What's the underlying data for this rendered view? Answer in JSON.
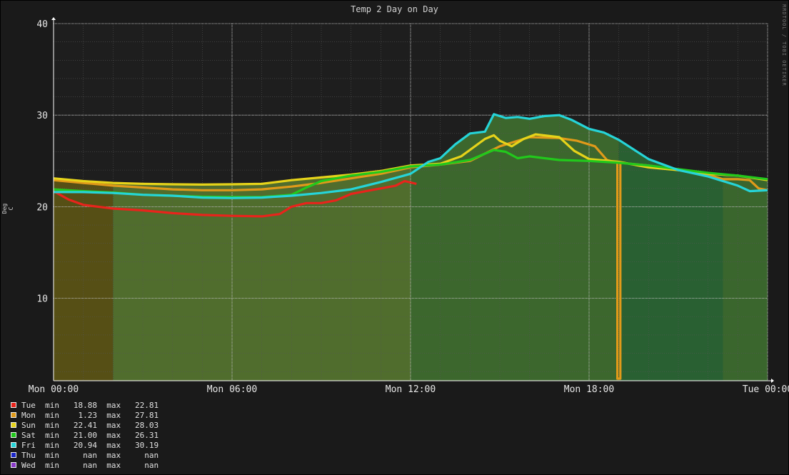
{
  "chart_data": {
    "type": "area",
    "title": "Temp 2 Day on Day",
    "ylabel": "Deg C",
    "watermark": "RRDTOOL / TOBI OETIKER",
    "xlim": [
      0,
      24
    ],
    "ylim": [
      1,
      40
    ],
    "y_ticks": [
      10,
      20,
      30,
      40
    ],
    "x_ticks": [
      {
        "h": 0,
        "label": "Mon 00:00"
      },
      {
        "h": 6,
        "label": "Mon 06:00"
      },
      {
        "h": 12,
        "label": "Mon 12:00"
      },
      {
        "h": 18,
        "label": "Mon 18:00"
      },
      {
        "h": 24,
        "label": "Tue 00:00"
      }
    ],
    "grid": true,
    "legend_position": "bottom-left",
    "series": [
      {
        "name": "Tue",
        "color": "#e8241c",
        "min": "18.88",
        "max": "22.81",
        "points": [
          [
            0,
            21.7
          ],
          [
            0.5,
            20.8
          ],
          [
            1,
            20.2
          ],
          [
            2,
            19.8
          ],
          [
            3,
            19.6
          ],
          [
            4,
            19.3
          ],
          [
            5,
            19.1
          ],
          [
            6,
            19.0
          ],
          [
            7,
            18.95
          ],
          [
            7.6,
            19.2
          ],
          [
            8,
            20.0
          ],
          [
            8.5,
            20.4
          ],
          [
            9,
            20.4
          ],
          [
            9.5,
            20.7
          ],
          [
            10,
            21.4
          ],
          [
            10.5,
            21.7
          ],
          [
            11,
            22.0
          ],
          [
            11.5,
            22.3
          ],
          [
            11.8,
            22.8
          ],
          [
            12.2,
            22.5
          ]
        ]
      },
      {
        "name": "Mon",
        "color": "#e09a1a",
        "min": "1.23",
        "max": "27.81",
        "points": [
          [
            0,
            22.9
          ],
          [
            1,
            22.6
          ],
          [
            2,
            22.3
          ],
          [
            3,
            22.1
          ],
          [
            4,
            21.9
          ],
          [
            5,
            21.8
          ],
          [
            6,
            21.8
          ],
          [
            7,
            21.9
          ],
          [
            8,
            22.2
          ],
          [
            9,
            22.6
          ],
          [
            10,
            23.1
          ],
          [
            11,
            23.6
          ],
          [
            12,
            24.3
          ],
          [
            13,
            24.6
          ],
          [
            14,
            25.0
          ],
          [
            15,
            26.6
          ],
          [
            15.5,
            27.1
          ],
          [
            16,
            27.6
          ],
          [
            17,
            27.5
          ],
          [
            17.6,
            27.2
          ],
          [
            18.2,
            26.6
          ],
          [
            18.6,
            25.1
          ],
          [
            18.95,
            24.8
          ],
          [
            18.95,
            1.23
          ],
          [
            19.05,
            1.23
          ],
          [
            19.05,
            24.8
          ],
          [
            20,
            24.5
          ],
          [
            21,
            24.0
          ],
          [
            22,
            23.5
          ],
          [
            22.5,
            23.0
          ],
          [
            23,
            23.0
          ],
          [
            23.4,
            22.9
          ],
          [
            23.7,
            22.0
          ],
          [
            24,
            21.8
          ]
        ]
      },
      {
        "name": "Sun",
        "color": "#e6d31a",
        "min": "22.41",
        "max": "28.03",
        "points": [
          [
            0,
            23.1
          ],
          [
            1,
            22.8
          ],
          [
            2,
            22.6
          ],
          [
            3,
            22.5
          ],
          [
            4,
            22.45
          ],
          [
            5,
            22.42
          ],
          [
            6,
            22.45
          ],
          [
            7,
            22.5
          ],
          [
            8,
            22.9
          ],
          [
            9,
            23.2
          ],
          [
            10,
            23.5
          ],
          [
            11,
            23.9
          ],
          [
            12,
            24.5
          ],
          [
            13,
            24.7
          ],
          [
            13.7,
            25.5
          ],
          [
            14.5,
            27.4
          ],
          [
            14.8,
            27.8
          ],
          [
            15,
            27.2
          ],
          [
            15.4,
            26.6
          ],
          [
            15.8,
            27.4
          ],
          [
            16.2,
            27.9
          ],
          [
            17,
            27.6
          ],
          [
            17.5,
            26.1
          ],
          [
            18,
            25.2
          ],
          [
            19,
            24.9
          ],
          [
            20,
            24.3
          ],
          [
            21,
            24.0
          ],
          [
            22,
            23.6
          ],
          [
            23,
            23.4
          ],
          [
            24,
            22.9
          ]
        ]
      },
      {
        "name": "Sat",
        "color": "#22c81c",
        "min": "21.00",
        "max": "26.31",
        "points": [
          [
            0,
            21.9
          ],
          [
            1,
            21.7
          ],
          [
            2,
            21.55
          ],
          [
            3,
            21.3
          ],
          [
            4,
            21.2
          ],
          [
            5,
            21.1
          ],
          [
            6,
            21.05
          ],
          [
            7,
            21.05
          ],
          [
            8,
            21.3
          ],
          [
            8.5,
            22.1
          ],
          [
            9,
            22.8
          ],
          [
            10,
            23.4
          ],
          [
            11,
            23.8
          ],
          [
            12,
            24.4
          ],
          [
            13,
            24.6
          ],
          [
            14,
            25.1
          ],
          [
            14.8,
            26.2
          ],
          [
            15.2,
            26.0
          ],
          [
            15.6,
            25.3
          ],
          [
            16,
            25.5
          ],
          [
            16.5,
            25.3
          ],
          [
            17,
            25.1
          ],
          [
            18,
            25.0
          ],
          [
            19,
            24.8
          ],
          [
            20,
            24.5
          ],
          [
            21,
            24.1
          ],
          [
            22,
            23.7
          ],
          [
            23,
            23.4
          ],
          [
            24,
            23.0
          ]
        ]
      },
      {
        "name": "Fri",
        "color": "#26d4d8",
        "min": "20.94",
        "max": "30.19",
        "points": [
          [
            0,
            21.6
          ],
          [
            1,
            21.6
          ],
          [
            2,
            21.5
          ],
          [
            3,
            21.3
          ],
          [
            4,
            21.2
          ],
          [
            5,
            21.0
          ],
          [
            6,
            20.95
          ],
          [
            7,
            21.0
          ],
          [
            8,
            21.2
          ],
          [
            9,
            21.5
          ],
          [
            10,
            21.9
          ],
          [
            11,
            22.7
          ],
          [
            12,
            23.6
          ],
          [
            12.6,
            24.9
          ],
          [
            13,
            25.3
          ],
          [
            13.5,
            26.8
          ],
          [
            14,
            28.0
          ],
          [
            14.5,
            28.2
          ],
          [
            14.8,
            30.1
          ],
          [
            15.2,
            29.7
          ],
          [
            15.6,
            29.8
          ],
          [
            16,
            29.6
          ],
          [
            16.5,
            29.9
          ],
          [
            17,
            30.0
          ],
          [
            17.4,
            29.5
          ],
          [
            18,
            28.5
          ],
          [
            18.5,
            28.1
          ],
          [
            19,
            27.3
          ],
          [
            20,
            25.2
          ],
          [
            21,
            24.0
          ],
          [
            22,
            23.3
          ],
          [
            23,
            22.3
          ],
          [
            23.4,
            21.7
          ],
          [
            24,
            21.8
          ]
        ]
      },
      {
        "name": "Thu",
        "color": "#1c28c8",
        "min": "nan",
        "max": "nan",
        "points": []
      },
      {
        "name": "Wed",
        "color": "#8a3ac8",
        "min": "nan",
        "max": "nan",
        "points": []
      }
    ],
    "background_bands": [
      {
        "from": 0,
        "to": 2,
        "color": "#5a5215"
      },
      {
        "from": 2,
        "to": 12,
        "color": "#53722e"
      },
      {
        "from": 12,
        "to": 19,
        "color": "#3e6b2e"
      },
      {
        "from": 19,
        "to": 22.5,
        "color": "#2a6434"
      },
      {
        "from": 22.5,
        "to": 24,
        "color": "#3c6a2e"
      }
    ],
    "min_label": "min",
    "max_label": "max"
  }
}
